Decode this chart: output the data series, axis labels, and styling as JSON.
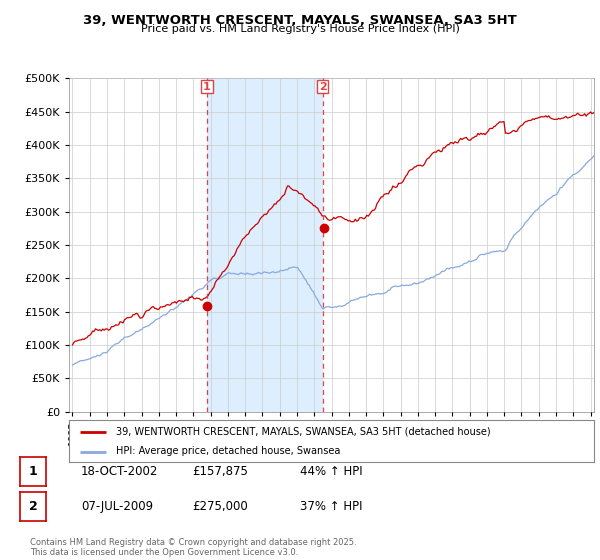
{
  "title_line1": "39, WENTWORTH CRESCENT, MAYALS, SWANSEA, SA3 5HT",
  "title_line2": "Price paid vs. HM Land Registry's House Price Index (HPI)",
  "legend_label1": "39, WENTWORTH CRESCENT, MAYALS, SWANSEA, SA3 5HT (detached house)",
  "legend_label2": "HPI: Average price, detached house, Swansea",
  "sale1_date": "18-OCT-2002",
  "sale1_price": 157875,
  "sale1_pct": "44% ↑ HPI",
  "sale1_label": "1",
  "sale2_date": "07-JUL-2009",
  "sale2_price": 275000,
  "sale2_pct": "37% ↑ HPI",
  "sale2_label": "2",
  "footnote": "Contains HM Land Registry data © Crown copyright and database right 2025.\nThis data is licensed under the Open Government Licence v3.0.",
  "line_color_red": "#cc0000",
  "line_color_blue": "#88aadd",
  "bg_plot": "#ffffff",
  "bg_highlight": "#ddeeff",
  "bg_figure": "#ffffff",
  "vline_color": "#dd4444",
  "grid_color": "#cccccc",
  "ylim": [
    0,
    500000
  ],
  "yticks": [
    0,
    50000,
    100000,
    150000,
    200000,
    250000,
    300000,
    350000,
    400000,
    450000,
    500000
  ],
  "year_start": 1995,
  "year_end": 2025,
  "vline1_year": 2002.79,
  "vline2_year": 2009.5
}
